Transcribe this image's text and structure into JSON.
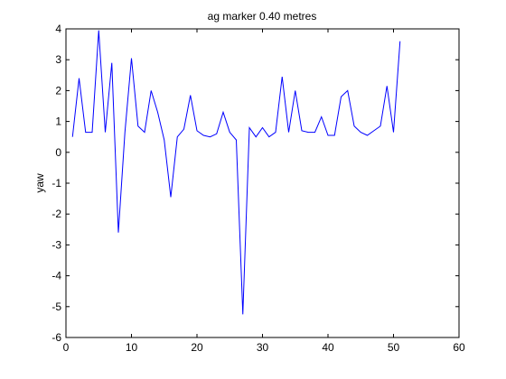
{
  "chart_data": {
    "type": "line",
    "title": "ag marker 0.40 metres",
    "xlabel": "",
    "ylabel": "yaw",
    "xlim": [
      0,
      60
    ],
    "ylim": [
      -6,
      4
    ],
    "xticks": [
      0,
      10,
      20,
      30,
      40,
      50,
      60
    ],
    "yticks": [
      -6,
      -5,
      -4,
      -3,
      -2,
      -1,
      0,
      1,
      2,
      3,
      4
    ],
    "grid": false,
    "line_color": "#0000ff",
    "series": [
      {
        "x": [
          1,
          2,
          3,
          4,
          5,
          6,
          7,
          8,
          9,
          10,
          11,
          12,
          13,
          14,
          15,
          16,
          17,
          18,
          19,
          20,
          21,
          22,
          23,
          24,
          25,
          26,
          27,
          28,
          29,
          30,
          31,
          32,
          33,
          34,
          35,
          36,
          37,
          38,
          39,
          40,
          41,
          42,
          43,
          44,
          45,
          46,
          47,
          48,
          49,
          50,
          51
        ],
        "values": [
          0.5,
          2.4,
          0.65,
          0.65,
          3.95,
          0.65,
          2.9,
          -2.6,
          0.65,
          3.05,
          0.85,
          0.65,
          2.0,
          1.3,
          0.4,
          -1.45,
          0.5,
          0.75,
          1.85,
          0.7,
          0.55,
          0.5,
          0.6,
          1.3,
          0.65,
          0.4,
          -5.25,
          0.8,
          0.5,
          0.8,
          0.5,
          0.65,
          2.45,
          0.65,
          2.0,
          0.7,
          0.65,
          0.65,
          1.15,
          0.55,
          0.55,
          1.8,
          2.0,
          0.85,
          0.65,
          0.55,
          0.7,
          0.85,
          2.15,
          0.65,
          3.6
        ]
      }
    ]
  }
}
